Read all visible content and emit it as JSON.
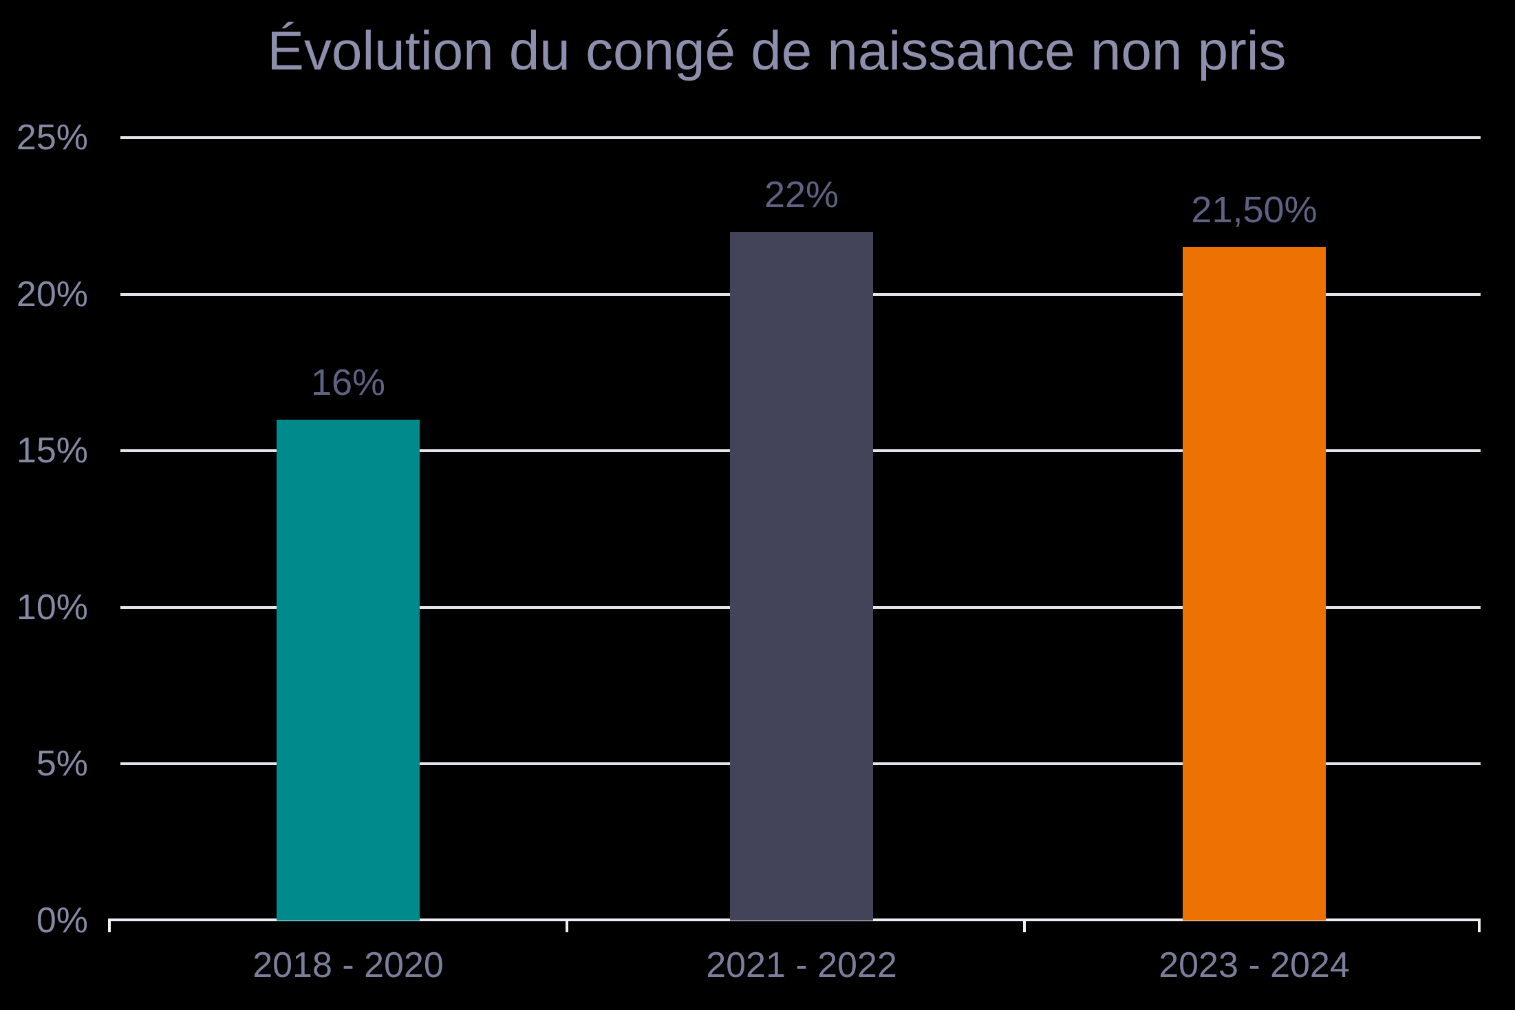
{
  "page": {
    "background": "#000000"
  },
  "chart_data": {
    "type": "bar",
    "title": "Évolution du congé de naissance non pris",
    "categories": [
      "2018 - 2020",
      "2021 - 2022",
      "2023 - 2024"
    ],
    "values": [
      16,
      22,
      21.5
    ],
    "value_labels": [
      "16%",
      "22%",
      "21,50%"
    ],
    "bar_colors": [
      "#008A8B",
      "#434459",
      "#EE7103"
    ],
    "xlabel": "",
    "ylabel": "",
    "ylim": [
      0,
      25
    ],
    "yticks": [
      {
        "value": 0,
        "label": "0%"
      },
      {
        "value": 5,
        "label": "5%"
      },
      {
        "value": 10,
        "label": "10%"
      },
      {
        "value": 15,
        "label": "15%"
      },
      {
        "value": 20,
        "label": "20%"
      },
      {
        "value": 25,
        "label": "25%"
      }
    ],
    "grid": true,
    "legend": false
  },
  "colors": {
    "background": "#000000",
    "title_text": "#8D8FAC",
    "ytick_text": "#8689A4",
    "xtick_text": "#7C7E9B",
    "value_label_text": "#5F6183",
    "gridline": "#E3E3EB",
    "axis_line": "#EFEFF5"
  }
}
